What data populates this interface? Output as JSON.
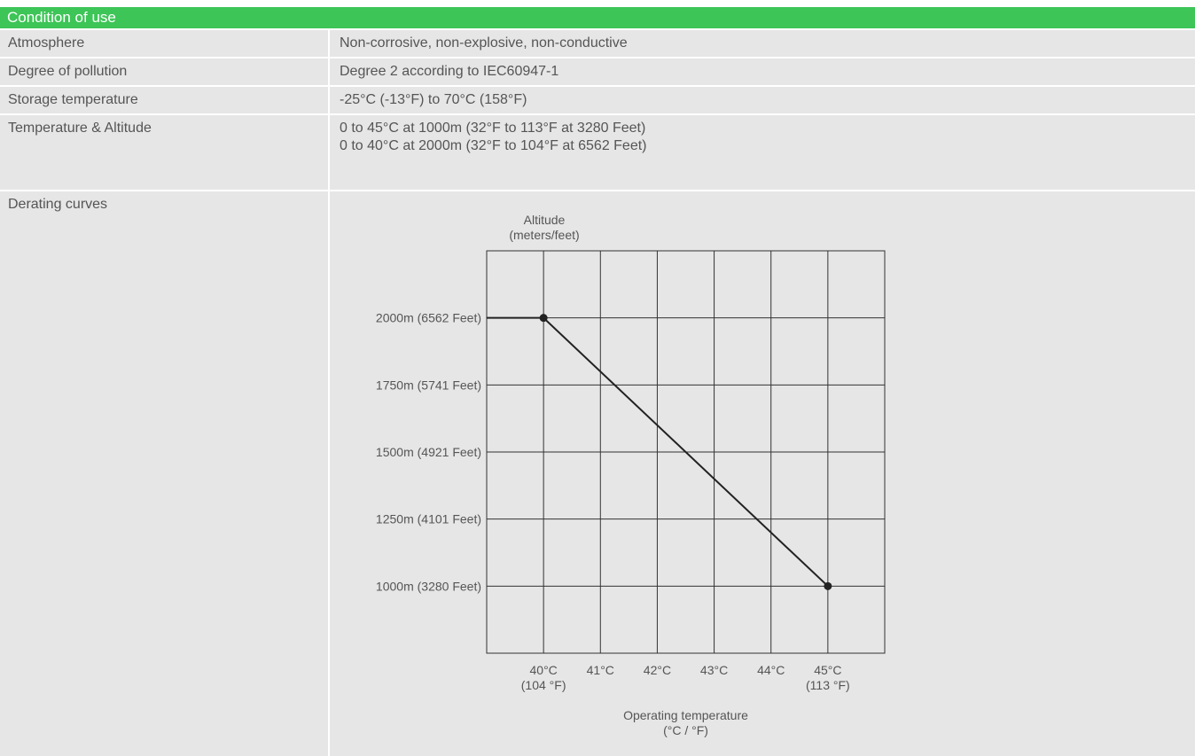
{
  "section": {
    "title": "Condition of use"
  },
  "rows": [
    {
      "label": "Atmosphere",
      "lines": [
        "Non-corrosive, non-explosive, non-conductive"
      ]
    },
    {
      "label": "Degree of pollution",
      "lines": [
        "Degree 2 according to IEC60947-1"
      ]
    },
    {
      "label": "Storage temperature",
      "lines": [
        "-25°C (-13°F) to 70°C (158°F)"
      ]
    },
    {
      "label": "Temperature & Altitude",
      "lines": [
        "0 to 45°C at 1000m (32°F to 113°F at 3280 Feet)",
        "0 to 40°C at 2000m (32°F to 104°F at 6562 Feet)"
      ]
    },
    {
      "label": "Derating curves",
      "lines": []
    }
  ],
  "chart_data": {
    "type": "line",
    "title": "",
    "ylabel_lines": [
      "Altitude",
      "(meters/feet)"
    ],
    "xlabel_lines": [
      "Operating temperature",
      "(°C / °F)"
    ],
    "xlim": [
      39,
      46
    ],
    "ylim": [
      750,
      2250
    ],
    "x_ticks": [
      {
        "value": 40,
        "lines": [
          "40°C",
          "(104 °F)"
        ]
      },
      {
        "value": 41,
        "lines": [
          "41°C"
        ]
      },
      {
        "value": 42,
        "lines": [
          "42°C"
        ]
      },
      {
        "value": 43,
        "lines": [
          "43°C"
        ]
      },
      {
        "value": 44,
        "lines": [
          "44°C"
        ]
      },
      {
        "value": 45,
        "lines": [
          "45°C",
          "(113 °F)"
        ]
      }
    ],
    "y_ticks": [
      {
        "value": 2000,
        "label": "2000m (6562 Feet)"
      },
      {
        "value": 1750,
        "label": "1750m (5741 Feet)"
      },
      {
        "value": 1500,
        "label": "1500m (4921 Feet)"
      },
      {
        "value": 1250,
        "label": "1250m (4101 Feet)"
      },
      {
        "value": 1000,
        "label": "1000m (3280 Feet)"
      }
    ],
    "series": [
      {
        "x": [
          39,
          40,
          45
        ],
        "y": [
          2000,
          2000,
          1000
        ],
        "markers_at": [
          1,
          2
        ]
      }
    ],
    "grid": true,
    "colors": {
      "line": "#222222",
      "grid": "#333333"
    }
  }
}
